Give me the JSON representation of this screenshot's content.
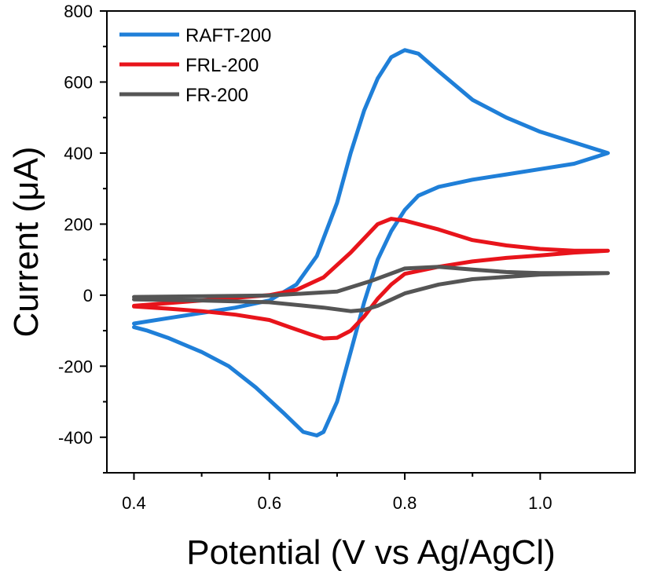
{
  "chart_data": {
    "type": "line",
    "title": "",
    "xlabel": "Potential (V vs Ag/AgCl)",
    "ylabel": "Current (μA)",
    "xlim": [
      0.36,
      1.14
    ],
    "ylim": [
      -500,
      800
    ],
    "xticks": [
      0.4,
      0.6,
      0.8,
      1.0
    ],
    "xtick_labels": [
      "0.4",
      "0.6",
      "0.8",
      "1.0"
    ],
    "yticks": [
      -400,
      -200,
      0,
      200,
      400,
      600,
      800
    ],
    "ytick_labels": [
      "-400",
      "-200",
      "0",
      "200",
      "400",
      "600",
      "800"
    ],
    "grid": false,
    "legend_position": "top-left",
    "series": [
      {
        "name": "RAFT-200",
        "color": "#1f7fd8",
        "x": [
          0.4,
          0.45,
          0.5,
          0.55,
          0.6,
          0.64,
          0.67,
          0.7,
          0.72,
          0.74,
          0.76,
          0.78,
          0.8,
          0.82,
          0.85,
          0.9,
          0.95,
          1.0,
          1.05,
          1.1,
          1.05,
          1.0,
          0.95,
          0.9,
          0.85,
          0.82,
          0.8,
          0.78,
          0.76,
          0.74,
          0.72,
          0.7,
          0.68,
          0.67,
          0.65,
          0.62,
          0.58,
          0.54,
          0.5,
          0.45,
          0.42,
          0.4
        ],
        "y": [
          -80,
          -65,
          -50,
          -35,
          -15,
          30,
          110,
          260,
          400,
          520,
          610,
          670,
          690,
          680,
          630,
          550,
          500,
          460,
          430,
          400,
          370,
          355,
          340,
          325,
          305,
          280,
          240,
          180,
          100,
          -20,
          -160,
          -300,
          -385,
          -395,
          -385,
          -330,
          -260,
          -200,
          -160,
          -120,
          -100,
          -90
        ]
      },
      {
        "name": "FRL-200",
        "color": "#e8141b",
        "x": [
          0.4,
          0.5,
          0.6,
          0.64,
          0.68,
          0.72,
          0.74,
          0.76,
          0.78,
          0.8,
          0.85,
          0.9,
          0.95,
          1.0,
          1.05,
          1.1,
          1.05,
          1.0,
          0.95,
          0.9,
          0.85,
          0.8,
          0.78,
          0.76,
          0.74,
          0.72,
          0.7,
          0.68,
          0.66,
          0.63,
          0.6,
          0.55,
          0.5,
          0.45,
          0.4
        ],
        "y": [
          -30,
          -15,
          0,
          15,
          50,
          120,
          160,
          200,
          215,
          210,
          185,
          155,
          140,
          130,
          125,
          125,
          120,
          112,
          105,
          95,
          80,
          60,
          30,
          -10,
          -60,
          -100,
          -120,
          -122,
          -110,
          -90,
          -70,
          -55,
          -45,
          -38,
          -32
        ]
      },
      {
        "name": "FR-200",
        "color": "#555555",
        "x": [
          0.4,
          0.5,
          0.6,
          0.7,
          0.75,
          0.8,
          0.85,
          0.9,
          0.95,
          1.0,
          1.1,
          1.0,
          0.9,
          0.85,
          0.8,
          0.76,
          0.74,
          0.72,
          0.68,
          0.6,
          0.5,
          0.4
        ],
        "y": [
          -5,
          -3,
          -1,
          10,
          40,
          75,
          80,
          72,
          65,
          62,
          62,
          58,
          45,
          30,
          5,
          -30,
          -42,
          -45,
          -35,
          -20,
          -15,
          -12
        ]
      }
    ]
  }
}
